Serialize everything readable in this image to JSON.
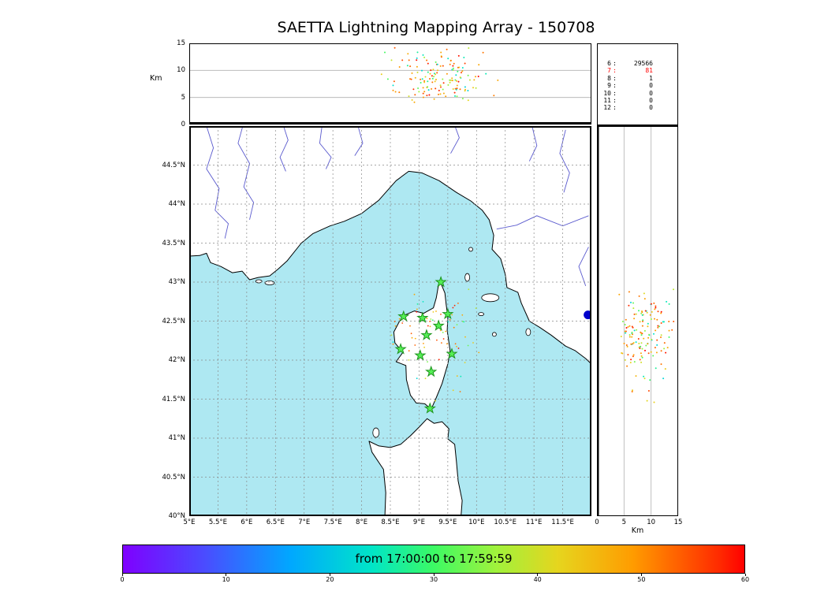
{
  "title": "SAETTA Lightning Mapping Array - 150708",
  "top_panel": {
    "ylabel": "Km",
    "ylim": [
      0,
      15
    ],
    "yticks": [
      {
        "v": 0,
        "label": "0"
      },
      {
        "v": 5,
        "label": "5"
      },
      {
        "v": 10,
        "label": "10"
      },
      {
        "v": 15,
        "label": "15"
      }
    ]
  },
  "right_panel": {
    "xlabel": "Km",
    "xlim": [
      0,
      15
    ],
    "xticks": [
      {
        "v": 0,
        "label": "0"
      },
      {
        "v": 5,
        "label": "5"
      },
      {
        "v": 10,
        "label": "10"
      },
      {
        "v": 15,
        "label": "15"
      }
    ]
  },
  "map": {
    "lon_lim": [
      5,
      12
    ],
    "lat_lim": [
      40,
      45
    ],
    "lon_ticks": [
      {
        "v": 5,
        "label": "5°E"
      },
      {
        "v": 5.5,
        "label": "5.5°E"
      },
      {
        "v": 6,
        "label": "6°E"
      },
      {
        "v": 6.5,
        "label": "6.5°E"
      },
      {
        "v": 7,
        "label": "7°E"
      },
      {
        "v": 7.5,
        "label": "7.5°E"
      },
      {
        "v": 8,
        "label": "8°E"
      },
      {
        "v": 8.5,
        "label": "8.5°E"
      },
      {
        "v": 9,
        "label": "9°E"
      },
      {
        "v": 9.5,
        "label": "9.5°E"
      },
      {
        "v": 10,
        "label": "10°E"
      },
      {
        "v": 10.5,
        "label": "10.5°E"
      },
      {
        "v": 11,
        "label": "11°E"
      },
      {
        "v": 11.5,
        "label": "11.5°E"
      }
    ],
    "lat_ticks": [
      {
        "v": 44.5,
        "label": "44.5°N"
      },
      {
        "v": 44,
        "label": "44°N"
      },
      {
        "v": 43.5,
        "label": "43.5°N"
      },
      {
        "v": 43,
        "label": "43°N"
      },
      {
        "v": 42.5,
        "label": "42.5°N"
      },
      {
        "v": 42,
        "label": "42°N"
      },
      {
        "v": 41.5,
        "label": "41.5°N"
      },
      {
        "v": 41,
        "label": "41°N"
      },
      {
        "v": 40.5,
        "label": "40.5°N"
      },
      {
        "v": 40,
        "label": "40°N"
      }
    ],
    "stations": [
      [
        9.38,
        43.0
      ],
      [
        8.73,
        42.56
      ],
      [
        9.06,
        42.54
      ],
      [
        9.5,
        42.59
      ],
      [
        9.34,
        42.44
      ],
      [
        9.13,
        42.32
      ],
      [
        8.68,
        42.14
      ],
      [
        9.02,
        42.06
      ],
      [
        9.57,
        42.08
      ],
      [
        9.21,
        41.85
      ],
      [
        9.19,
        41.38
      ]
    ],
    "blue_marker": {
      "lon": 11.94,
      "lat": 42.58
    },
    "coast": {
      "north": [
        [
          4.9,
          43.33
        ],
        [
          5.18,
          43.34
        ],
        [
          5.3,
          43.37
        ],
        [
          5.37,
          43.25
        ],
        [
          5.55,
          43.2
        ],
        [
          5.75,
          43.12
        ],
        [
          5.92,
          43.14
        ],
        [
          6.05,
          43.03
        ],
        [
          6.2,
          43.06
        ],
        [
          6.4,
          43.08
        ],
        [
          6.55,
          43.17
        ],
        [
          6.7,
          43.27
        ],
        [
          6.95,
          43.5
        ],
        [
          7.15,
          43.62
        ],
        [
          7.45,
          43.72
        ],
        [
          7.7,
          43.78
        ],
        [
          8.0,
          43.88
        ],
        [
          8.3,
          44.05
        ],
        [
          8.6,
          44.3
        ],
        [
          8.82,
          44.42
        ],
        [
          9.05,
          44.4
        ],
        [
          9.35,
          44.3
        ],
        [
          9.65,
          44.15
        ],
        [
          9.9,
          44.04
        ],
        [
          10.1,
          43.92
        ],
        [
          10.22,
          43.8
        ],
        [
          10.3,
          43.6
        ],
        [
          10.27,
          43.42
        ],
        [
          10.42,
          43.3
        ],
        [
          10.5,
          43.1
        ],
        [
          10.53,
          42.93
        ],
        [
          10.72,
          42.87
        ],
        [
          10.78,
          42.73
        ],
        [
          10.92,
          42.5
        ],
        [
          11.1,
          42.42
        ],
        [
          11.3,
          42.32
        ],
        [
          11.55,
          42.18
        ],
        [
          11.72,
          42.12
        ],
        [
          11.9,
          42.02
        ],
        [
          12.1,
          41.88
        ],
        [
          12.1,
          45.1
        ],
        [
          4.9,
          45.1
        ]
      ],
      "corsica": [
        [
          9.36,
          43.02
        ],
        [
          9.45,
          42.86
        ],
        [
          9.47,
          42.72
        ],
        [
          9.5,
          42.55
        ],
        [
          9.49,
          42.38
        ],
        [
          9.54,
          42.12
        ],
        [
          9.5,
          41.95
        ],
        [
          9.4,
          41.7
        ],
        [
          9.3,
          41.52
        ],
        [
          9.21,
          41.37
        ],
        [
          9.1,
          41.44
        ],
        [
          8.95,
          41.45
        ],
        [
          8.85,
          41.55
        ],
        [
          8.78,
          41.75
        ],
        [
          8.77,
          41.93
        ],
        [
          8.6,
          41.98
        ],
        [
          8.72,
          42.1
        ],
        [
          8.58,
          42.22
        ],
        [
          8.56,
          42.36
        ],
        [
          8.66,
          42.5
        ],
        [
          8.76,
          42.58
        ],
        [
          8.92,
          42.63
        ],
        [
          9.08,
          42.6
        ],
        [
          9.25,
          42.67
        ],
        [
          9.3,
          42.8
        ],
        [
          9.33,
          42.93
        ]
      ],
      "sardinia": [
        [
          8.4,
          39.9
        ],
        [
          8.42,
          40.3
        ],
        [
          8.38,
          40.6
        ],
        [
          8.18,
          40.82
        ],
        [
          8.13,
          40.96
        ],
        [
          8.3,
          40.9
        ],
        [
          8.5,
          40.88
        ],
        [
          8.68,
          40.92
        ],
        [
          8.85,
          41.03
        ],
        [
          9.0,
          41.14
        ],
        [
          9.14,
          41.25
        ],
        [
          9.26,
          41.19
        ],
        [
          9.4,
          41.21
        ],
        [
          9.52,
          41.12
        ],
        [
          9.5,
          40.99
        ],
        [
          9.62,
          40.92
        ],
        [
          9.65,
          40.7
        ],
        [
          9.68,
          40.45
        ],
        [
          9.75,
          40.2
        ],
        [
          9.72,
          39.9
        ]
      ]
    },
    "islands": [
      {
        "lon": 10.24,
        "lat": 42.8,
        "rx": 11,
        "ry": 5
      },
      {
        "lon": 9.84,
        "lat": 43.06,
        "rx": 3,
        "ry": 5
      },
      {
        "lon": 9.9,
        "lat": 43.42,
        "rx": 2.5,
        "ry": 2.5
      },
      {
        "lon": 10.08,
        "lat": 42.59,
        "rx": 3.5,
        "ry": 2
      },
      {
        "lon": 10.31,
        "lat": 42.33,
        "rx": 2.5,
        "ry": 2.5
      },
      {
        "lon": 10.9,
        "lat": 42.36,
        "rx": 3,
        "ry": 4.5
      },
      {
        "lon": 6.4,
        "lat": 42.99,
        "rx": 6,
        "ry": 2.5
      },
      {
        "lon": 6.21,
        "lat": 43.01,
        "rx": 4,
        "ry": 2
      },
      {
        "lon": 8.25,
        "lat": 41.07,
        "rx": 4,
        "ry": 6
      }
    ],
    "rivers": [
      [
        [
          5.28,
          45.05
        ],
        [
          5.42,
          44.72
        ],
        [
          5.3,
          44.45
        ],
        [
          5.52,
          44.2
        ],
        [
          5.45,
          43.92
        ],
        [
          5.68,
          43.75
        ],
        [
          5.62,
          43.56
        ]
      ],
      [
        [
          5.95,
          45.05
        ],
        [
          5.85,
          44.78
        ],
        [
          6.05,
          44.52
        ],
        [
          5.95,
          44.22
        ],
        [
          6.12,
          44.02
        ],
        [
          6.05,
          43.8
        ]
      ],
      [
        [
          6.62,
          45.05
        ],
        [
          6.72,
          44.82
        ],
        [
          6.58,
          44.6
        ],
        [
          6.68,
          44.42
        ]
      ],
      [
        [
          7.32,
          45.05
        ],
        [
          7.27,
          44.78
        ],
        [
          7.47,
          44.6
        ],
        [
          7.38,
          44.45
        ]
      ],
      [
        [
          7.92,
          45.05
        ],
        [
          8.02,
          44.78
        ],
        [
          7.88,
          44.62
        ]
      ],
      [
        [
          9.6,
          45.05
        ],
        [
          9.7,
          44.85
        ],
        [
          9.55,
          44.65
        ]
      ],
      [
        [
          10.95,
          45.05
        ],
        [
          11.05,
          44.75
        ],
        [
          10.92,
          44.55
        ]
      ],
      [
        [
          11.55,
          44.95
        ],
        [
          11.45,
          44.65
        ],
        [
          11.62,
          44.4
        ],
        [
          11.52,
          44.15
        ]
      ],
      [
        [
          11.95,
          43.85
        ],
        [
          11.5,
          43.72
        ],
        [
          11.05,
          43.85
        ],
        [
          10.7,
          43.73
        ],
        [
          10.35,
          43.68
        ]
      ],
      [
        [
          11.95,
          43.45
        ],
        [
          11.78,
          43.2
        ],
        [
          11.9,
          42.95
        ]
      ]
    ]
  },
  "stats": {
    "rows": [
      {
        "level": "6",
        "value": "29566",
        "color": "#000000"
      },
      {
        "level": "7",
        "value": "81",
        "color": "#ff0000"
      },
      {
        "level": "8",
        "value": "1",
        "color": "#000000"
      },
      {
        "level": "9",
        "value": "0",
        "color": "#000000"
      },
      {
        "level": "10",
        "value": "0",
        "color": "#000000"
      },
      {
        "level": "11",
        "value": "0",
        "color": "#000000"
      },
      {
        "level": "12",
        "value": "0",
        "color": "#000000"
      }
    ]
  },
  "colorbar": {
    "label": "from 17:00:00 to 17:59:59",
    "lim": [
      0,
      60
    ],
    "ticks": [
      {
        "v": 0,
        "label": "0"
      },
      {
        "v": 10,
        "label": "10"
      },
      {
        "v": 20,
        "label": "20"
      },
      {
        "v": 30,
        "label": "30"
      },
      {
        "v": 40,
        "label": "40"
      },
      {
        "v": 50,
        "label": "50"
      },
      {
        "v": 60,
        "label": "60"
      }
    ],
    "stops": [
      "#7f00ff 0%",
      "#4b4bff 13%",
      "#00a8ff 27%",
      "#00e5c8 40%",
      "#3cfa64 50%",
      "#a0f23c 60%",
      "#e6d51e 70%",
      "#ff9c00 82%",
      "#ff2a00 96%",
      "#ff0000 100%"
    ]
  },
  "colors": {
    "sea": "#aee8f2",
    "land": "#ffffff",
    "coast": "#000000",
    "river": "#5a5ace",
    "grid": "#8a8a8a",
    "panel_grid": "#b0b0b0",
    "station_fill": "#55ee55",
    "station_edge": "#1d941d",
    "blue_marker": "#0000cc"
  },
  "scatter": {
    "seed": 1337,
    "n": 150,
    "lon_mu": 9.35,
    "lon_sigma": 0.42,
    "lat_mu": 42.33,
    "lat_sigma": 0.3,
    "alt_mu": 8.8,
    "alt_sigma": 2.3,
    "alt_min": 3.2,
    "alt_max": 14.6,
    "time_segments": [
      [
        0.72,
        1.0,
        0.62
      ],
      [
        0.35,
        0.58,
        0.24
      ],
      [
        0.58,
        0.72,
        0.14
      ]
    ]
  },
  "chart_data": [
    {
      "type": "scatter",
      "panel": "top-altitude-vs-longitude",
      "ylabel": "Km",
      "ylim": [
        0,
        15
      ],
      "yticks": [
        0,
        5,
        10,
        15
      ],
      "x_axis": "longitude_deg_E",
      "xlim": [
        5,
        12
      ],
      "points_summary": {
        "n_visible": 150,
        "lon_center": 9.35,
        "lon_sigma": 0.42,
        "alt_center_km": 8.8,
        "alt_sigma_km": 2.3
      },
      "color_encoding": "event time 17:00:00-17:59:59 mapped to rainbow colormap (mostly orange/red, some cyan-green)"
    },
    {
      "type": "scatter",
      "panel": "map-plan-view",
      "xlim_deg_E": [
        5,
        12
      ],
      "ylim_deg_N": [
        40,
        45
      ],
      "xticks": [
        "5°E",
        "5.5°E",
        "6°E",
        "6.5°E",
        "7°E",
        "7.5°E",
        "8°E",
        "8.5°E",
        "9°E",
        "9.5°E",
        "10°E",
        "10.5°E",
        "11°E",
        "11.5°E"
      ],
      "yticks": [
        "44.5°N",
        "44°N",
        "43.5°N",
        "43°N",
        "42.5°N",
        "42°N",
        "41.5°N",
        "41°N",
        "40.5°N",
        "40°N"
      ],
      "grid": "dashed 0.5deg",
      "stations_lon_lat": [
        [
          9.38,
          43.0
        ],
        [
          8.73,
          42.56
        ],
        [
          9.06,
          42.54
        ],
        [
          9.5,
          42.59
        ],
        [
          9.34,
          42.44
        ],
        [
          9.13,
          42.32
        ],
        [
          8.68,
          42.14
        ],
        [
          9.02,
          42.06
        ],
        [
          9.57,
          42.08
        ],
        [
          9.21,
          41.85
        ],
        [
          9.19,
          41.38
        ]
      ],
      "blue_marker_lon_lat": [
        11.94,
        42.58
      ],
      "points_summary": {
        "lon_center": 9.35,
        "lat_center": 42.33,
        "region": "over and east of Corsica"
      }
    },
    {
      "type": "scatter",
      "panel": "right-altitude-vs-latitude",
      "xlabel": "Km",
      "xlim": [
        0,
        15
      ],
      "xticks": [
        0,
        5,
        10,
        15
      ],
      "y_axis": "latitude_deg_N",
      "ylim": [
        40,
        45
      ],
      "points_summary": {
        "lat_center": 42.33,
        "lat_sigma": 0.3,
        "alt_center_km": 8.8,
        "alt_sigma_km": 2.3
      }
    },
    {
      "type": "table",
      "panel": "source-counts",
      "columns": [
        "level",
        "count"
      ],
      "rows": [
        [
          6,
          29566
        ],
        [
          7,
          81
        ],
        [
          8,
          1
        ],
        [
          9,
          0
        ],
        [
          10,
          0
        ],
        [
          11,
          0
        ],
        [
          12,
          0
        ]
      ],
      "highlight_row_level": 7
    },
    {
      "type": "colorbar",
      "label": "from 17:00:00 to 17:59:59",
      "xlim": [
        0,
        60
      ],
      "ticks": [
        0,
        10,
        20,
        30,
        40,
        50,
        60
      ],
      "unit": "minutes after 17:00:00",
      "colormap": "rainbow (violet to red)"
    }
  ]
}
